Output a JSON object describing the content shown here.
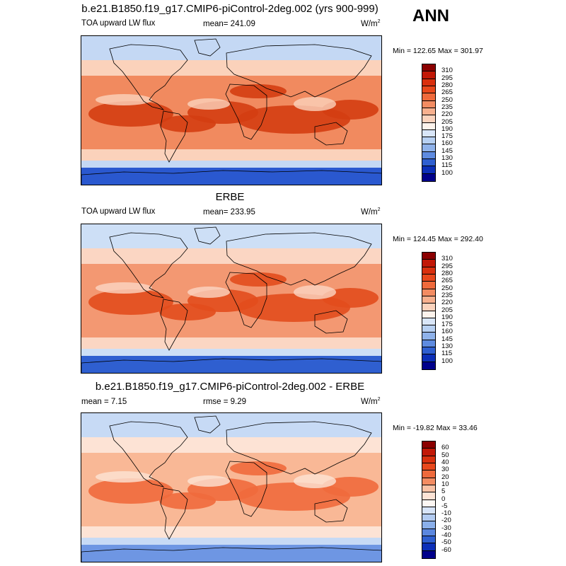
{
  "season": "ANN",
  "panels": [
    {
      "title": "b.e21.B1850.f19_g17.CMIP6-piControl-2deg.002 (yrs 900-999)",
      "left_label": "TOA upward LW flux",
      "center_label": "mean= 241.09",
      "units": "W/m",
      "units_sup": "2",
      "minmax": "Min = 122.65 Max = 301.97",
      "colorbar": {
        "labels": [
          "310",
          "295",
          "280",
          "265",
          "250",
          "235",
          "220",
          "205",
          "190",
          "175",
          "160",
          "145",
          "130",
          "115",
          "100"
        ],
        "colors": [
          "#8b0000",
          "#c21807",
          "#d9300e",
          "#e8481c",
          "#ef6a3c",
          "#f38c62",
          "#f7b08e",
          "#fbd3bd",
          "#fdf3ec",
          "#d9e6f8",
          "#b7d0f2",
          "#8fb2ea",
          "#5e8be0",
          "#2f5fd0",
          "#0c2fb8",
          "#00008b"
        ]
      },
      "map_colors": {
        "high": "#d43d12",
        "mid": "#f18a5f",
        "low": "#fbd2bb",
        "cold": "#c4d8f4",
        "polar": "#2a58cf"
      }
    },
    {
      "title": "ERBE",
      "left_label": "TOA upward LW flux",
      "center_label": "mean= 233.95",
      "units": "W/m",
      "units_sup": "2",
      "minmax": "Min = 124.45 Max = 292.40",
      "colorbar": {
        "labels": [
          "310",
          "295",
          "280",
          "265",
          "250",
          "235",
          "220",
          "205",
          "190",
          "175",
          "160",
          "145",
          "130",
          "115",
          "100"
        ],
        "colors": [
          "#8b0000",
          "#c21807",
          "#d9300e",
          "#e8481c",
          "#ef6a3c",
          "#f38c62",
          "#f7b08e",
          "#fbd3bd",
          "#fdf3ec",
          "#d9e6f8",
          "#b7d0f2",
          "#8fb2ea",
          "#5e8be0",
          "#2f5fd0",
          "#0c2fb8",
          "#00008b"
        ]
      },
      "map_colors": {
        "high": "#e24d1d",
        "mid": "#f39872",
        "low": "#fbd6c3",
        "cold": "#cddff6",
        "polar": "#2f5fd0"
      }
    },
    {
      "title": "b.e21.B1850.f19_g17.CMIP6-piControl-2deg.002 - ERBE",
      "left_label": "mean =   7.15",
      "center_label": "rmse =   9.29",
      "units": "W/m",
      "units_sup": "2",
      "minmax": "Min = -19.82 Max =  33.46",
      "colorbar": {
        "labels": [
          "60",
          "50",
          "40",
          "30",
          "20",
          "10",
          "5",
          "0",
          "-5",
          "-10",
          "-20",
          "-30",
          "-40",
          "-50",
          "-60"
        ],
        "colors": [
          "#8b0000",
          "#c21807",
          "#d9300e",
          "#e8481c",
          "#ef6a3c",
          "#f38c62",
          "#f9c2a6",
          "#fde3d5",
          "#fdf7f3",
          "#d7e4f8",
          "#b2cbf1",
          "#8aafea",
          "#5b87df",
          "#2f5fd0",
          "#0c2fb8",
          "#00008b"
        ]
      },
      "map_colors": {
        "high": "#ef6a3c",
        "mid": "#f9b896",
        "low": "#fde3d5",
        "cold": "#c7daf5",
        "polar": "#6e96e3"
      }
    }
  ]
}
